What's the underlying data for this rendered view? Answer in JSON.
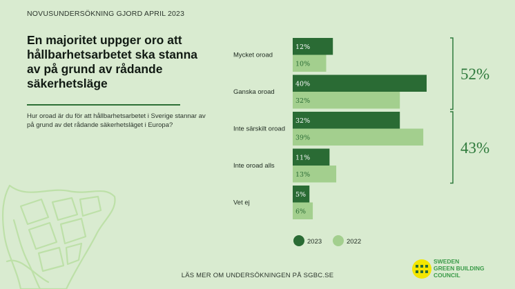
{
  "header": {
    "kicker": "NOVUSUNDERSÖKNING GJORD APRIL 2023",
    "title": "En majoritet uppger oro att hållbarhetsarbetet ska stanna av på grund av rådande säkerhetsläge",
    "question": "Hur oroad är du för att hållbarhetsarbetet i Sverige stannar av på grund av det rådande säkerhetsläget i Europa?"
  },
  "footer": {
    "text": "LÄS MER OM UNDERSÖKNINGEN PÅ SGBC.SE"
  },
  "logo": {
    "line1": "SWEDEN",
    "line2": "GREEN BUILDING",
    "line3": "COUNCIL"
  },
  "brackets": [
    {
      "label": "52%",
      "from": 0,
      "to": 1
    },
    {
      "label": "43%",
      "from": 2,
      "to": 3
    }
  ],
  "chart_data": {
    "type": "bar",
    "orientation": "horizontal",
    "categories": [
      "Mycket oroad",
      "Ganska oroad",
      "Inte särskilt oroad",
      "Inte oroad alls",
      "Vet ej"
    ],
    "series": [
      {
        "name": "2023",
        "values": [
          12,
          40,
          32,
          11,
          5
        ],
        "labels": [
          "12%",
          "40%",
          "32%",
          "11%",
          "5%"
        ],
        "color": "#2a6b34"
      },
      {
        "name": "2022",
        "values": [
          10,
          32,
          39,
          13,
          6
        ],
        "labels": [
          "10%",
          "32%",
          "39%",
          "13%",
          "6%"
        ],
        "color": "#a3cf8e"
      }
    ],
    "legend_position": "bottom",
    "grid": false
  },
  "colors": {
    "background": "#d9ebd0",
    "accent": "#2f7a3c",
    "dark_bar": "#2a6b34",
    "light_bar": "#a3cf8e",
    "logo_yellow": "#f3e600"
  }
}
